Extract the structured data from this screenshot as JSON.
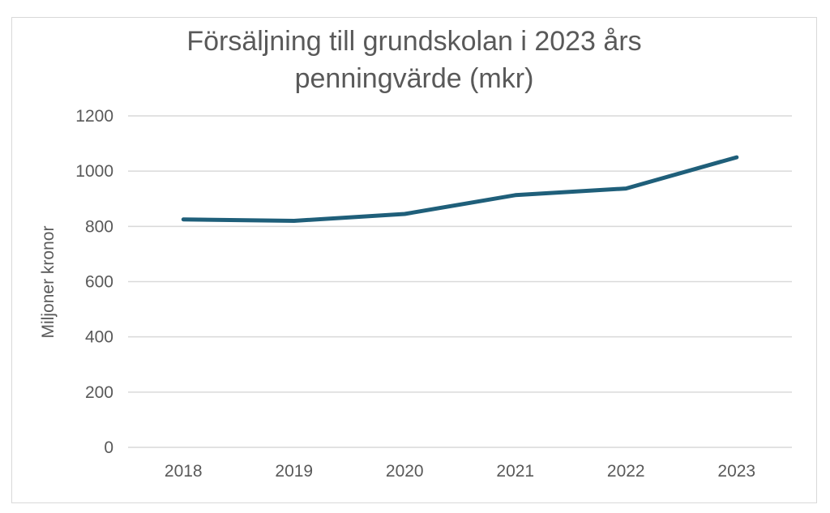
{
  "chart_data": {
    "type": "line",
    "title_lines": [
      "Försäljning till grundskolan i 2023 års",
      "penningvärde (mkr)"
    ],
    "xlabel": "",
    "ylabel": "Miljoner kronor",
    "categories": [
      "2018",
      "2019",
      "2020",
      "2021",
      "2022",
      "2023"
    ],
    "series": [
      {
        "values": [
          825,
          820,
          845,
          913,
          937,
          1050
        ]
      }
    ],
    "ylim": [
      0,
      1200
    ],
    "yticks": [
      0,
      200,
      400,
      600,
      800,
      1000,
      1200
    ],
    "yticks_labels": [
      "0",
      "200",
      "400",
      "600",
      "800",
      "1000",
      "1200"
    ],
    "grid": true,
    "legend": "none",
    "colors": {
      "line": "#1f5f7a",
      "grid": "#d9d9d9",
      "text": "#595959"
    }
  }
}
